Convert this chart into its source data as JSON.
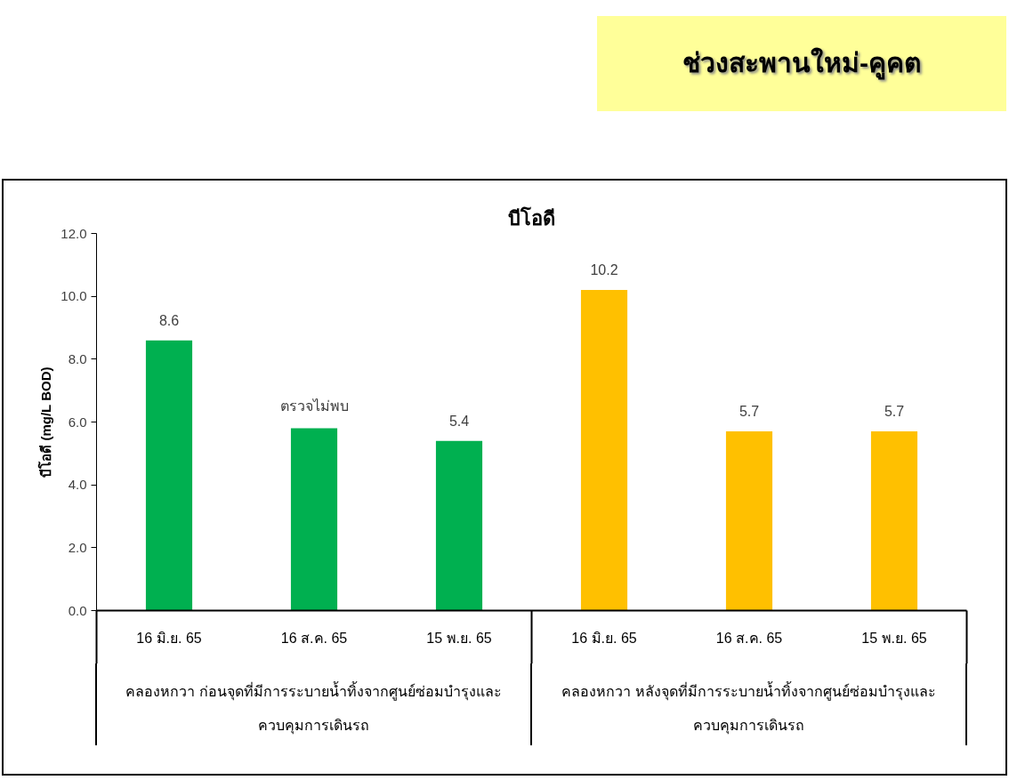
{
  "chart_data": {
    "type": "bar",
    "title": "บีโอดี",
    "ylabel": "บีโอดี (mg/L BOD)",
    "annotations": [
      "ช่วงสะพานใหม่-คูคต"
    ],
    "categories": [
      "16 มิ.ย. 65",
      "16 ส.ค. 65",
      "15 พ.ย. 65",
      "16 มิ.ย. 65",
      "16 ส.ค. 65",
      "15 พ.ย. 65"
    ],
    "series": [
      {
        "name": "คลองหกวา ก่อนจุดที่มีการระบายน้ำทิ้งจากศูนย์ซ่อมบำรุงและควบคุมการเดินรถ",
        "color": "#00b050",
        "values": [
          8.6,
          5.8,
          5.4,
          null,
          null,
          null
        ],
        "value_labels": [
          "8.6",
          "ตรวจไม่พบ",
          "5.4",
          null,
          null,
          null
        ]
      },
      {
        "name": "คลองหกวา หลังจุดที่มีการระบายน้ำทิ้งจากศูนย์ซ่อมบำรุงและควบคุมการเดินรถ",
        "color": "#ffc000",
        "values": [
          null,
          null,
          null,
          10.2,
          5.7,
          5.7
        ],
        "value_labels": [
          null,
          null,
          null,
          "10.2",
          "5.7",
          "5.7"
        ]
      }
    ],
    "ylim": [
      0,
      12
    ],
    "yticks": [
      {
        "value": 0,
        "label": "0.0"
      },
      {
        "value": 2,
        "label": "2.0"
      },
      {
        "value": 4,
        "label": "4.0"
      },
      {
        "value": 6,
        "label": "6.0"
      },
      {
        "value": 8,
        "label": "8.0"
      },
      {
        "value": 10,
        "label": "10.0"
      },
      {
        "value": 12,
        "label": "12.0"
      }
    ]
  }
}
